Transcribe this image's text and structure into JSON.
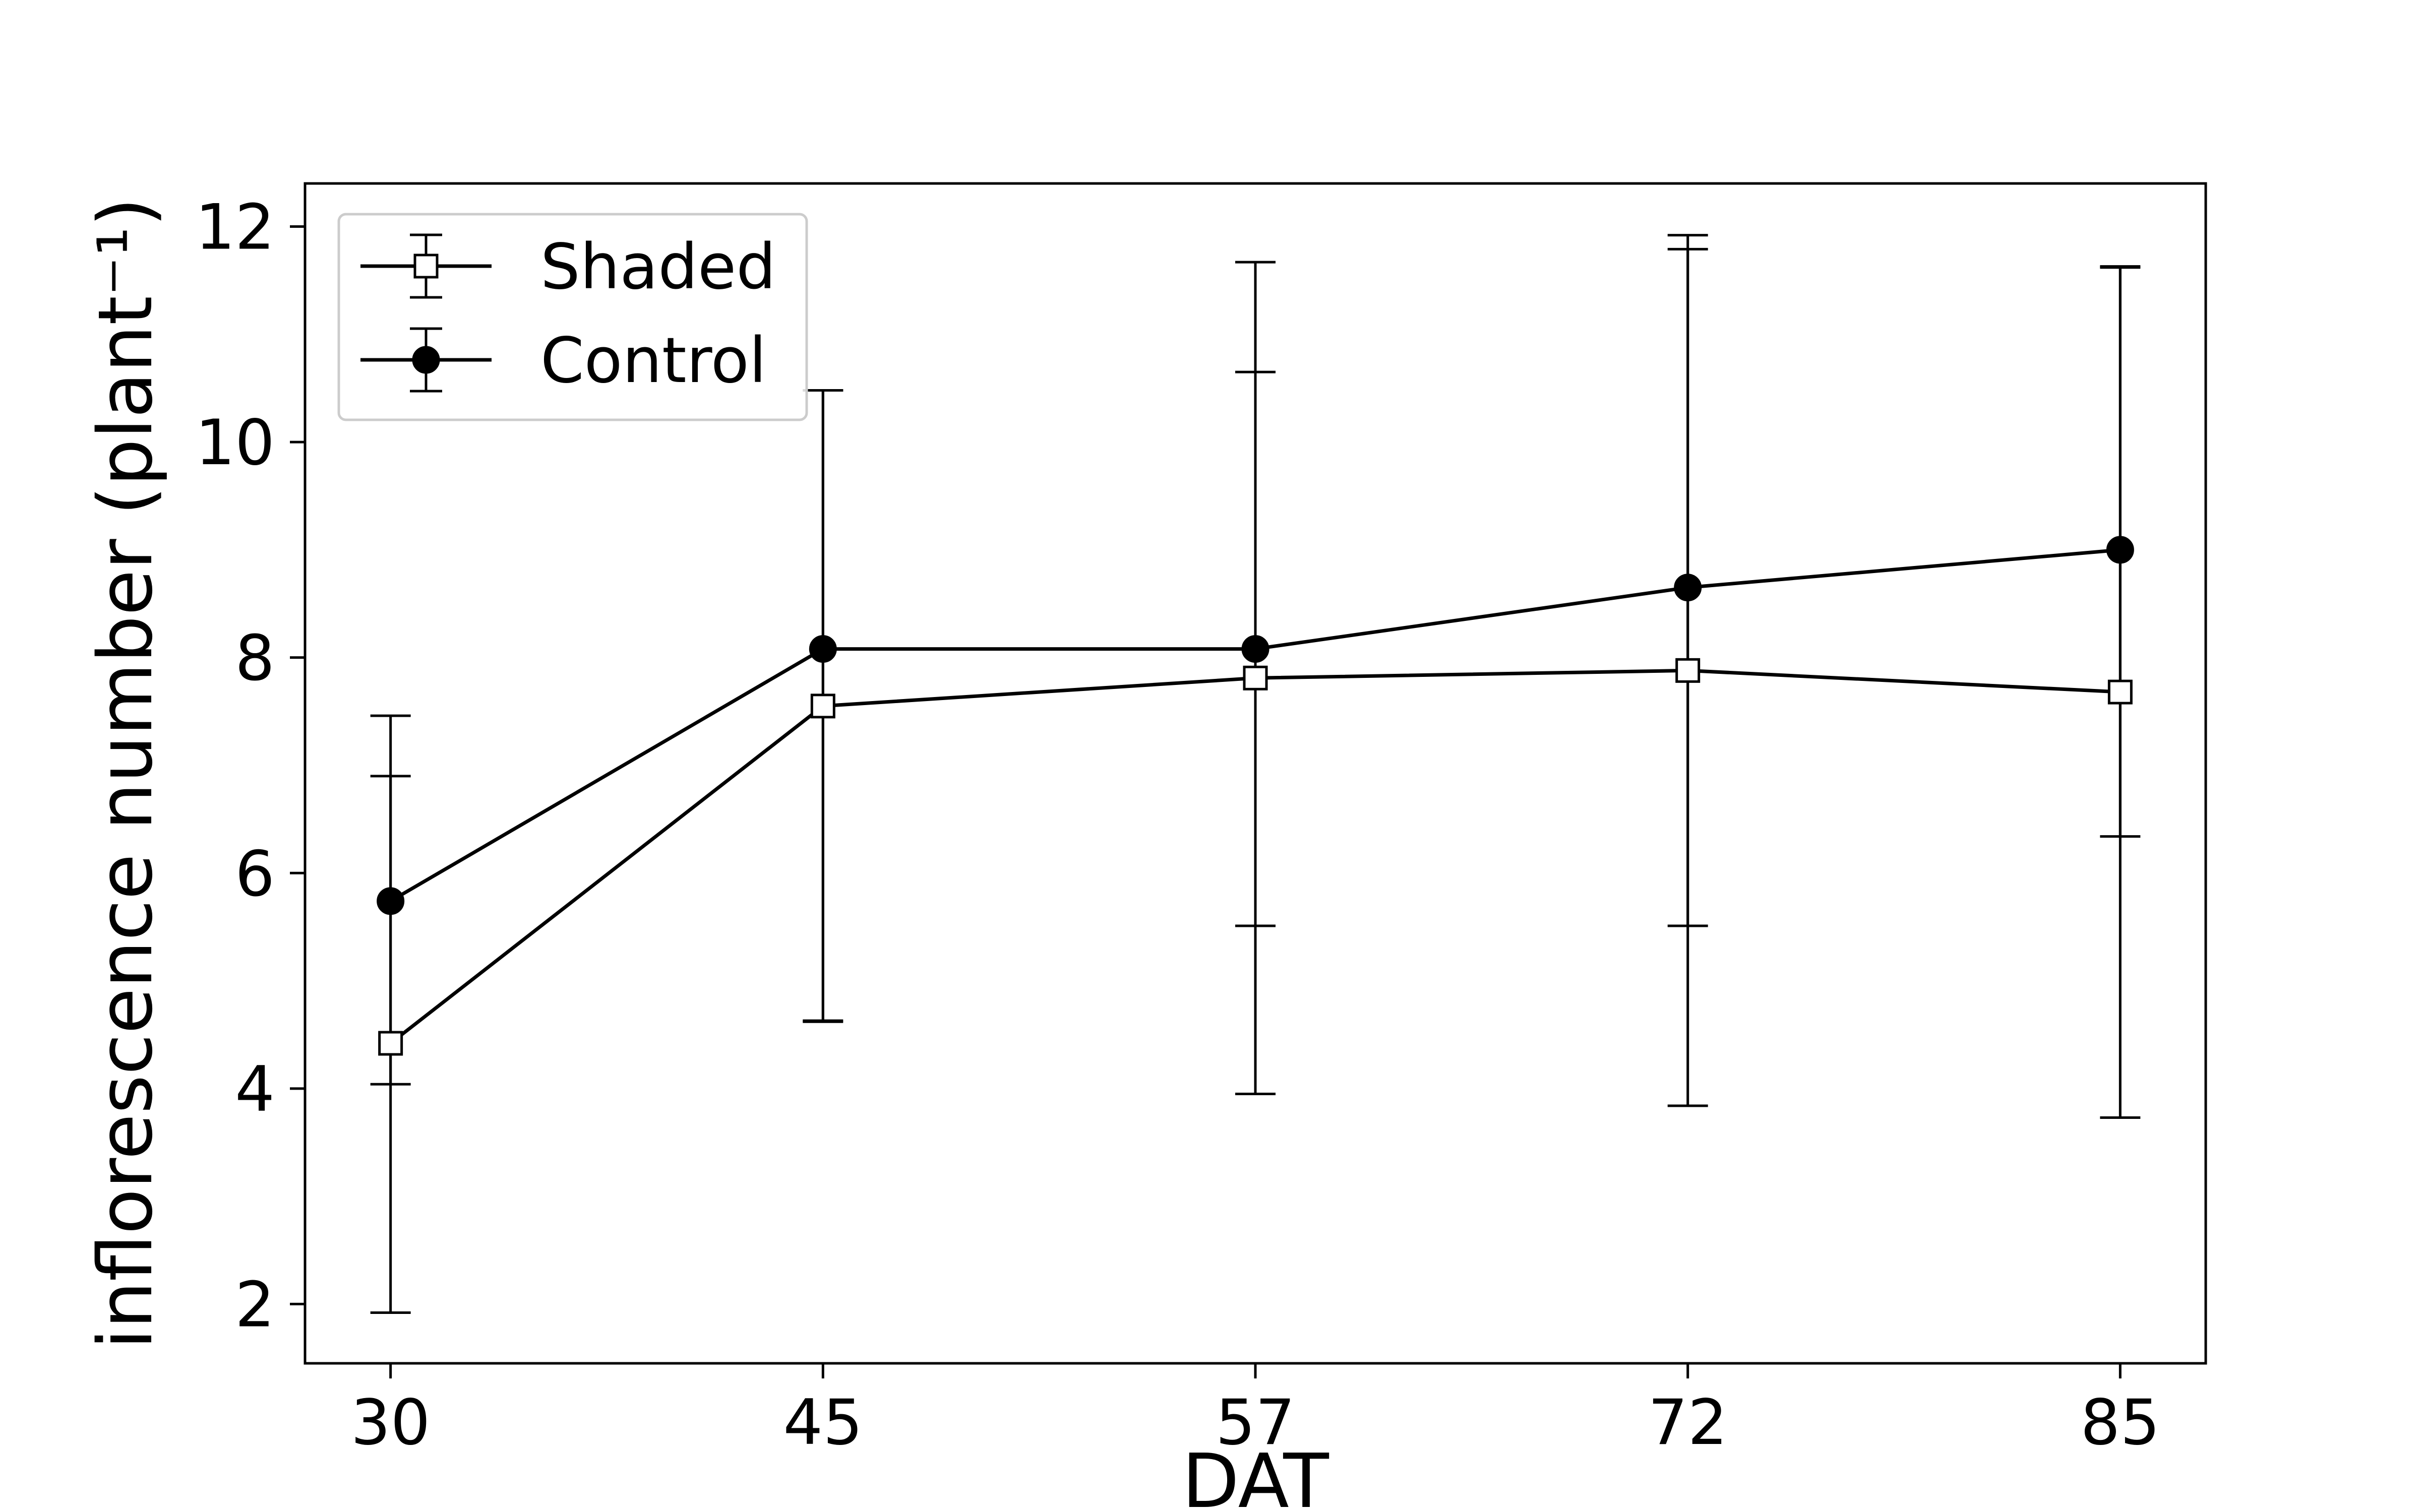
{
  "chart_data": {
    "type": "line",
    "title": "",
    "xlabel": "DAT",
    "ylabel": "inflorescence number (plant⁻¹)",
    "categories": [
      "30",
      "45",
      "57",
      "72",
      "85"
    ],
    "ylim": [
      1.45,
      12.4
    ],
    "yticks": [
      "2",
      "4",
      "6",
      "8",
      "10",
      "12"
    ],
    "grid": false,
    "legend_position": "top-left",
    "series": [
      {
        "name": "Shaded",
        "marker": "square-open",
        "values": [
          4.42,
          7.55,
          7.81,
          7.88,
          7.68
        ],
        "error_low": [
          2.5,
          2.93,
          3.86,
          4.04,
          3.95
        ],
        "error_high": [
          2.48,
          2.93,
          3.86,
          4.04,
          3.95
        ]
      },
      {
        "name": "Control",
        "marker": "circle-filled",
        "values": [
          5.74,
          8.08,
          8.08,
          8.65,
          9.0
        ],
        "error_low": [
          1.7,
          3.45,
          2.57,
          3.14,
          2.66
        ],
        "error_high": [
          1.72,
          2.4,
          2.57,
          3.14,
          2.62
        ]
      }
    ],
    "colors": {
      "line": "#000000",
      "legend_border": "#cccccc",
      "background": "#ffffff"
    }
  }
}
